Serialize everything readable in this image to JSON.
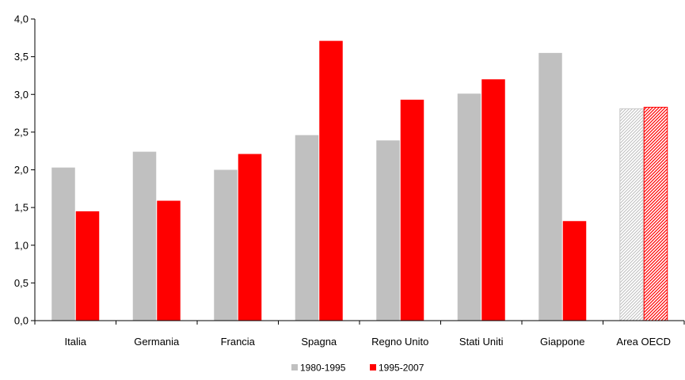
{
  "chart_data": {
    "type": "bar",
    "categories": [
      "Italia",
      "Germania",
      "Francia",
      "Spagna",
      "Regno Unito",
      "Stati Uniti",
      "Giappone",
      "Area OECD"
    ],
    "series": [
      {
        "name": "1980-1995",
        "color": "#c0c0c0",
        "values": [
          2.03,
          2.24,
          2.0,
          2.46,
          2.39,
          3.01,
          3.55,
          2.81
        ]
      },
      {
        "name": "1995-2007",
        "color": "#ff0000",
        "values": [
          1.45,
          1.59,
          2.21,
          3.71,
          2.93,
          3.2,
          1.32,
          2.83
        ]
      }
    ],
    "hatched_category": "Area OECD",
    "ylim": [
      0,
      4.0
    ],
    "yticks": [
      "0,0",
      "0,5",
      "1,0",
      "1,5",
      "2,0",
      "2,5",
      "3,0",
      "3,5",
      "4,0"
    ],
    "ytick_values": [
      0,
      0.5,
      1.0,
      1.5,
      2.0,
      2.5,
      3.0,
      3.5,
      4.0
    ],
    "legend_position": "bottom",
    "grid": false,
    "title": "",
    "xlabel": "",
    "ylabel": ""
  }
}
